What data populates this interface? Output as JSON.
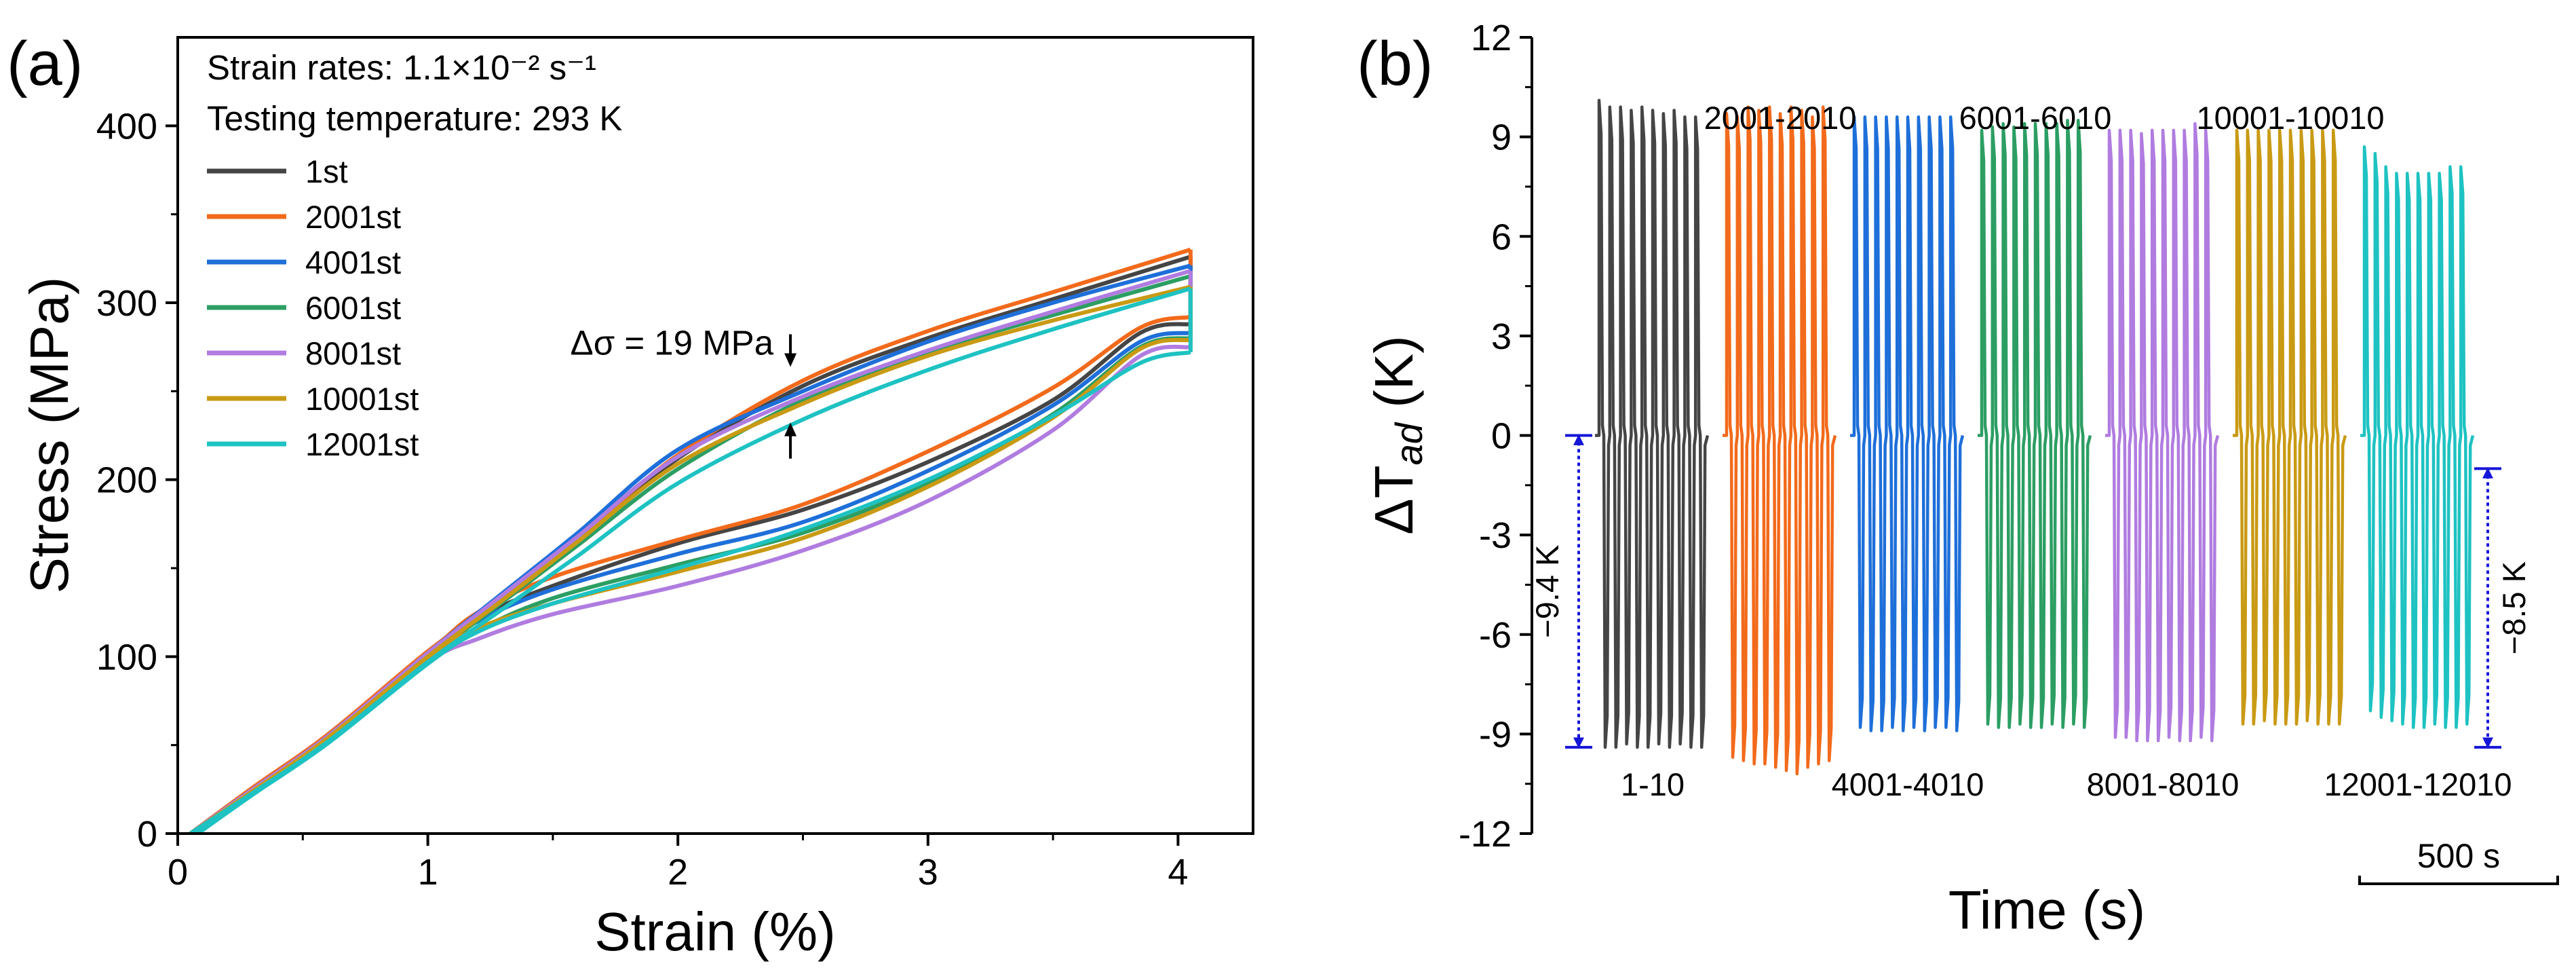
{
  "chart_data": [
    {
      "type": "line",
      "panel_label": "(a)",
      "xlabel": "Strain (%)",
      "ylabel": "Stress (MPa)",
      "xlim": [
        0,
        4.3
      ],
      "ylim": [
        0,
        450
      ],
      "xticks": [
        0,
        1,
        2,
        3,
        4
      ],
      "yticks": [
        0,
        100,
        200,
        300,
        400
      ],
      "info_lines": [
        "Strain rates: 1.1×10⁻² s⁻¹",
        "Testing temperature: 293 K"
      ],
      "annotation": "Δσ = 19 MPa",
      "annotation_strain": 2.45,
      "annotation_range": [
        233,
        263
      ],
      "legend_position": "upper-left",
      "series": [
        {
          "name": "1st",
          "color": "#454545",
          "loading": [
            [
              0.05,
              0
            ],
            [
              0.3,
              25
            ],
            [
              0.6,
              55
            ],
            [
              1.0,
              100
            ],
            [
              1.3,
              132
            ],
            [
              1.6,
              165
            ],
            [
              2.0,
              212
            ],
            [
              2.5,
              253
            ],
            [
              3.0,
              280
            ],
            [
              3.5,
              302
            ],
            [
              4.05,
              326
            ]
          ],
          "unloading": [
            [
              0.08,
              0
            ],
            [
              0.3,
              24
            ],
            [
              0.6,
              54
            ],
            [
              1.0,
              100
            ],
            [
              1.2,
              122
            ],
            [
              1.5,
              140
            ],
            [
              2.0,
              164
            ],
            [
              2.5,
              183
            ],
            [
              3.0,
              210
            ],
            [
              3.5,
              245
            ],
            [
              3.85,
              283
            ],
            [
              4.05,
              288
            ]
          ]
        },
        {
          "name": "2001st",
          "color": "#F26A1B",
          "loading": [
            [
              0.05,
              0
            ],
            [
              0.3,
              26
            ],
            [
              0.6,
              56
            ],
            [
              1.0,
              103
            ],
            [
              1.3,
              134
            ],
            [
              1.6,
              167
            ],
            [
              2.0,
              214
            ],
            [
              2.5,
              256
            ],
            [
              3.0,
              284
            ],
            [
              3.5,
              306
            ],
            [
              4.05,
              330
            ]
          ],
          "unloading": [
            [
              0.08,
              0
            ],
            [
              0.3,
              25
            ],
            [
              0.6,
              55
            ],
            [
              1.0,
              102
            ],
            [
              1.2,
              125
            ],
            [
              1.5,
              145
            ],
            [
              2.0,
              166
            ],
            [
              2.5,
              186
            ],
            [
              3.0,
              216
            ],
            [
              3.5,
              252
            ],
            [
              3.85,
              286
            ],
            [
              4.05,
              292
            ]
          ]
        },
        {
          "name": "4001st",
          "color": "#1E6FD9",
          "loading": [
            [
              0.05,
              0
            ],
            [
              0.3,
              25
            ],
            [
              0.6,
              55
            ],
            [
              1.0,
              102
            ],
            [
              1.3,
              136
            ],
            [
              1.6,
              170
            ],
            [
              2.0,
              217
            ],
            [
              2.5,
              250
            ],
            [
              3.0,
              278
            ],
            [
              3.5,
              300
            ],
            [
              4.05,
              321
            ]
          ],
          "unloading": [
            [
              0.08,
              0
            ],
            [
              0.3,
              24
            ],
            [
              0.6,
              54
            ],
            [
              1.0,
              100
            ],
            [
              1.2,
              120
            ],
            [
              1.5,
              138
            ],
            [
              2.0,
              158
            ],
            [
              2.5,
              176
            ],
            [
              3.0,
              205
            ],
            [
              3.5,
              242
            ],
            [
              3.85,
              278
            ],
            [
              4.05,
              283
            ]
          ]
        },
        {
          "name": "6001st",
          "color": "#2C9E63",
          "loading": [
            [
              0.05,
              0
            ],
            [
              0.3,
              24
            ],
            [
              0.6,
              53
            ],
            [
              1.0,
              99
            ],
            [
              1.3,
              131
            ],
            [
              1.6,
              163
            ],
            [
              2.0,
              206
            ],
            [
              2.5,
              245
            ],
            [
              3.0,
              272
            ],
            [
              3.5,
              293
            ],
            [
              4.05,
              315
            ]
          ],
          "unloading": [
            [
              0.08,
              0
            ],
            [
              0.3,
              23
            ],
            [
              0.6,
              52
            ],
            [
              1.0,
              98
            ],
            [
              1.2,
              115
            ],
            [
              1.5,
              133
            ],
            [
              2.0,
              152
            ],
            [
              2.5,
              170
            ],
            [
              3.0,
              198
            ],
            [
              3.5,
              237
            ],
            [
              3.85,
              275
            ],
            [
              4.05,
              280
            ]
          ]
        },
        {
          "name": "8001st",
          "color": "#B07CE0",
          "loading": [
            [
              0.05,
              0
            ],
            [
              0.3,
              25
            ],
            [
              0.6,
              55
            ],
            [
              1.0,
              102
            ],
            [
              1.3,
              135
            ],
            [
              1.6,
              168
            ],
            [
              2.0,
              213
            ],
            [
              2.5,
              247
            ],
            [
              3.0,
              273
            ],
            [
              3.5,
              295
            ],
            [
              4.05,
              318
            ]
          ],
          "unloading": [
            [
              0.08,
              0
            ],
            [
              0.3,
              24
            ],
            [
              0.6,
              54
            ],
            [
              1.0,
              97
            ],
            [
              1.2,
              110
            ],
            [
              1.5,
              124
            ],
            [
              2.0,
              140
            ],
            [
              2.5,
              160
            ],
            [
              3.0,
              188
            ],
            [
              3.5,
              228
            ],
            [
              3.85,
              270
            ],
            [
              4.05,
              275
            ]
          ]
        },
        {
          "name": "10001st",
          "color": "#C99A14",
          "loading": [
            [
              0.05,
              0
            ],
            [
              0.3,
              24
            ],
            [
              0.6,
              54
            ],
            [
              1.0,
              100
            ],
            [
              1.3,
              132
            ],
            [
              1.6,
              165
            ],
            [
              2.0,
              209
            ],
            [
              2.5,
              243
            ],
            [
              3.0,
              270
            ],
            [
              3.5,
              290
            ],
            [
              4.05,
              309
            ]
          ],
          "unloading": [
            [
              0.08,
              0
            ],
            [
              0.3,
              23
            ],
            [
              0.6,
              53
            ],
            [
              1.0,
              99
            ],
            [
              1.2,
              116
            ],
            [
              1.5,
              130
            ],
            [
              2.0,
              148
            ],
            [
              2.5,
              167
            ],
            [
              3.0,
              196
            ],
            [
              3.5,
              235
            ],
            [
              3.85,
              274
            ],
            [
              4.05,
              279
            ]
          ]
        },
        {
          "name": "12001st",
          "color": "#1EC2C2",
          "loading": [
            [
              0.05,
              0
            ],
            [
              0.3,
              23
            ],
            [
              0.6,
              52
            ],
            [
              1.0,
              97
            ],
            [
              1.3,
              127
            ],
            [
              1.6,
              157
            ],
            [
              2.0,
              198
            ],
            [
              2.5,
              234
            ],
            [
              3.0,
              262
            ],
            [
              3.5,
              285
            ],
            [
              4.05,
              308
            ]
          ],
          "unloading": [
            [
              0.08,
              0
            ],
            [
              0.3,
              22
            ],
            [
              0.6,
              51
            ],
            [
              1.0,
              96
            ],
            [
              1.2,
              114
            ],
            [
              1.5,
              130
            ],
            [
              2.0,
              150
            ],
            [
              2.5,
              172
            ],
            [
              3.0,
              200
            ],
            [
              3.5,
              236
            ],
            [
              3.85,
              266
            ],
            [
              4.05,
              272
            ]
          ]
        }
      ]
    },
    {
      "type": "line",
      "panel_label": "(b)",
      "xlabel": "Time (s)",
      "ylabel": "ΔT",
      "ylabel_subscript": "ad",
      "ylabel_unit": "(K)",
      "ylim": [
        -12,
        12
      ],
      "yticks": [
        -12,
        -9,
        -6,
        -3,
        0,
        3,
        6,
        9,
        12
      ],
      "scale_bar": "500 s",
      "cycles_per_block": 10,
      "blocks": [
        {
          "label": "1-10",
          "label_position": "below",
          "color": "#454545",
          "heating": [
            10.1,
            9.9,
            9.9,
            9.8,
            9.9,
            9.8,
            9.7,
            9.8,
            9.6,
            9.6
          ],
          "cooling": [
            -9.4,
            -9.4,
            -9.3,
            -9.4,
            -9.4,
            -9.3,
            -9.4,
            -9.3,
            -9.4,
            -9.4
          ]
        },
        {
          "label": "2001-2010",
          "label_position": "above",
          "color": "#F26A1B",
          "heating": [
            9.7,
            9.6,
            9.9,
            9.8,
            9.9,
            9.7,
            9.9,
            9.8,
            9.6,
            9.9
          ],
          "cooling": [
            -9.7,
            -9.8,
            -9.9,
            -9.9,
            -10.0,
            -10.1,
            -10.2,
            -10.0,
            -9.9,
            -9.8
          ]
        },
        {
          "label": "4001-4010",
          "label_position": "below",
          "color": "#1E6FD9",
          "heating": [
            9.6,
            9.6,
            9.6,
            9.6,
            9.6,
            9.6,
            9.6,
            9.6,
            9.6,
            9.6
          ],
          "cooling": [
            -8.8,
            -8.9,
            -8.9,
            -8.8,
            -8.9,
            -8.8,
            -8.9,
            -8.8,
            -8.8,
            -8.9
          ]
        },
        {
          "label": "6001-6010",
          "label_position": "above",
          "color": "#2C9E63",
          "heating": [
            9.2,
            9.3,
            9.4,
            9.3,
            9.4,
            9.4,
            9.4,
            9.4,
            9.5,
            9.5
          ],
          "cooling": [
            -8.7,
            -8.8,
            -8.8,
            -8.7,
            -8.8,
            -8.8,
            -8.7,
            -8.8,
            -8.7,
            -8.8
          ]
        },
        {
          "label": "8001-8010",
          "label_position": "below",
          "color": "#B07CE0",
          "heating": [
            9.2,
            9.2,
            9.2,
            9.1,
            9.2,
            9.2,
            9.2,
            9.2,
            9.4,
            9.2
          ],
          "cooling": [
            -9.1,
            -9.1,
            -9.2,
            -9.2,
            -9.2,
            -9.1,
            -9.2,
            -9.2,
            -9.1,
            -9.2
          ]
        },
        {
          "label": "10001-10010",
          "label_position": "above",
          "color": "#C99A14",
          "heating": [
            9.2,
            9.2,
            9.2,
            9.2,
            9.2,
            9.2,
            9.2,
            9.2,
            9.2,
            9.2
          ],
          "cooling": [
            -8.7,
            -8.7,
            -8.6,
            -8.7,
            -8.7,
            -8.7,
            -8.6,
            -8.7,
            -8.7,
            -8.7
          ]
        },
        {
          "label": "12001-12010",
          "label_position": "below",
          "color": "#1EC2C2",
          "heating": [
            8.7,
            8.5,
            8.1,
            7.9,
            7.9,
            7.9,
            7.9,
            7.9,
            8.1,
            8.1
          ],
          "cooling": [
            -8.3,
            -8.5,
            -8.6,
            -8.7,
            -8.8,
            -8.8,
            -8.7,
            -8.8,
            -8.8,
            -8.7
          ]
        }
      ],
      "annotations": [
        {
          "text": "−9.4 K",
          "from": 0,
          "to": -9.4,
          "color": "#1515D8",
          "side": "left-of-first-block"
        },
        {
          "text": "−8.5 K",
          "from": -1.0,
          "to": -9.4,
          "color": "#1515D8",
          "side": "right-of-last-block"
        }
      ]
    }
  ]
}
